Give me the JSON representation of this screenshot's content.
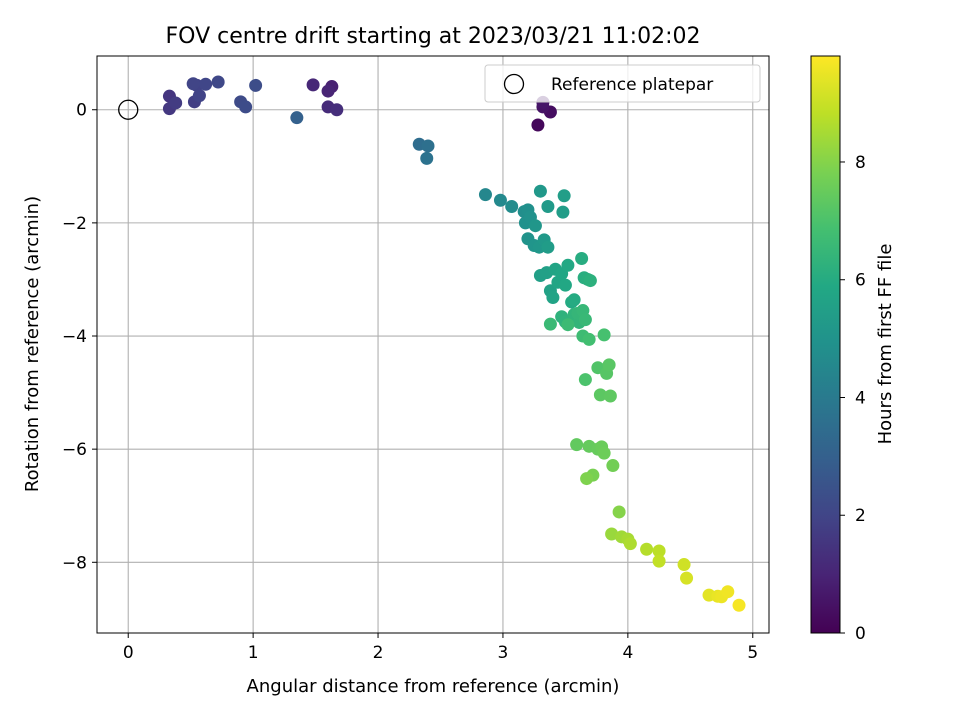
{
  "chart_data": {
    "type": "scatter",
    "title": "FOV centre drift starting at 2023/03/21 11:02:02",
    "xlabel": "Angular distance from reference (arcmin)",
    "ylabel": "Rotation from reference (arcmin)",
    "xlim": [
      -0.25,
      5.13
    ],
    "ylim": [
      -9.25,
      0.95
    ],
    "x_ticks": [
      0,
      1,
      2,
      3,
      4,
      5
    ],
    "y_ticks": [
      0,
      -2,
      -4,
      -6,
      -8
    ],
    "grid": true,
    "legend": {
      "placement": "top-right",
      "entries": [
        "Reference platepar"
      ]
    },
    "reference_marker": {
      "name": "Reference platepar",
      "x": 0,
      "y": 0
    },
    "colorbar": {
      "label": "Hours from first FF file",
      "colormap": "viridis",
      "range": [
        0,
        9.8
      ],
      "ticks": [
        0,
        2,
        4,
        6,
        8
      ]
    },
    "series": [
      {
        "x": [
          3.28,
          3.38,
          3.32,
          3.32,
          1.63,
          1.6,
          1.48,
          1.6,
          1.67,
          0.33,
          0.33,
          0.38,
          0.53,
          0.55,
          0.57,
          0.52,
          0.62,
          0.72,
          0.9,
          0.94,
          1.02,
          1.35,
          2.33,
          2.4,
          2.39,
          2.86,
          2.98,
          3.07,
          3.17,
          3.2,
          3.18,
          3.22,
          3.2,
          3.25,
          3.26,
          3.29,
          3.3,
          3.33,
          3.36,
          3.36,
          3.48,
          3.49,
          3.3,
          3.35,
          3.38,
          3.4,
          3.42,
          3.44,
          3.47,
          3.5,
          3.52,
          3.55,
          3.57,
          3.63,
          3.65,
          3.68,
          3.7,
          3.47,
          3.5,
          3.57,
          3.61,
          3.6,
          3.64,
          3.66,
          3.38,
          3.52,
          3.64,
          3.69,
          3.81,
          3.66,
          3.76,
          3.83,
          3.85,
          3.78,
          3.86,
          3.59,
          3.69,
          3.76,
          3.79,
          3.81,
          3.88,
          3.72,
          3.67,
          3.93,
          3.87,
          3.95,
          4.0,
          4.02,
          4.15,
          4.25,
          4.25,
          4.45,
          4.47,
          4.65,
          4.72,
          4.75,
          4.8,
          4.89
        ],
        "y": [
          -0.27,
          -0.04,
          0.05,
          0.13,
          0.41,
          0.33,
          0.44,
          0.05,
          0.0,
          0.24,
          0.02,
          0.12,
          0.14,
          0.43,
          0.25,
          0.46,
          0.45,
          0.49,
          0.14,
          0.05,
          0.43,
          -0.14,
          -0.61,
          -0.64,
          -0.86,
          -1.5,
          -1.6,
          -1.71,
          -1.8,
          -1.77,
          -2.0,
          -1.9,
          -2.28,
          -2.4,
          -2.05,
          -2.43,
          -1.44,
          -2.3,
          -1.71,
          -2.43,
          -1.81,
          -1.52,
          -2.93,
          -2.88,
          -3.2,
          -3.32,
          -2.82,
          -3.05,
          -2.9,
          -3.1,
          -2.75,
          -3.4,
          -3.36,
          -2.63,
          -2.97,
          -3.0,
          -3.02,
          -3.66,
          -3.75,
          -3.62,
          -3.76,
          -3.6,
          -3.55,
          -3.71,
          -3.79,
          -3.8,
          -4.0,
          -4.06,
          -3.98,
          -4.77,
          -4.56,
          -4.66,
          -4.51,
          -5.04,
          -5.06,
          -5.92,
          -5.95,
          -6.0,
          -5.96,
          -6.07,
          -6.29,
          -6.46,
          -6.52,
          -7.11,
          -7.5,
          -7.55,
          -7.59,
          -7.67,
          -7.77,
          -7.8,
          -7.98,
          -8.04,
          -8.28,
          -8.58,
          -8.6,
          -8.61,
          -8.52,
          -8.76
        ],
        "t": [
          0.2,
          0.35,
          0.5,
          0.6,
          0.9,
          1.0,
          1.1,
          1.2,
          1.3,
          1.5,
          1.6,
          1.7,
          1.8,
          1.9,
          1.95,
          2.0,
          2.05,
          2.1,
          2.2,
          2.25,
          2.3,
          3.0,
          3.5,
          3.6,
          3.7,
          4.5,
          4.6,
          4.7,
          4.8,
          4.85,
          4.9,
          4.95,
          5.0,
          5.05,
          5.1,
          5.15,
          5.2,
          5.25,
          5.3,
          5.35,
          5.4,
          5.45,
          5.5,
          5.55,
          5.6,
          5.65,
          5.7,
          5.75,
          5.8,
          5.85,
          5.9,
          5.95,
          6.0,
          6.05,
          6.1,
          6.15,
          6.2,
          6.25,
          6.3,
          6.35,
          6.4,
          6.45,
          6.5,
          6.55,
          6.6,
          6.65,
          6.7,
          6.8,
          6.9,
          7.0,
          7.1,
          7.2,
          7.25,
          7.3,
          7.35,
          7.4,
          7.45,
          7.5,
          7.55,
          7.6,
          7.7,
          7.8,
          7.9,
          8.0,
          8.3,
          8.4,
          8.5,
          8.6,
          8.7,
          8.8,
          8.9,
          9.1,
          9.2,
          9.4,
          9.5,
          9.55,
          9.6,
          9.7
        ]
      }
    ]
  }
}
